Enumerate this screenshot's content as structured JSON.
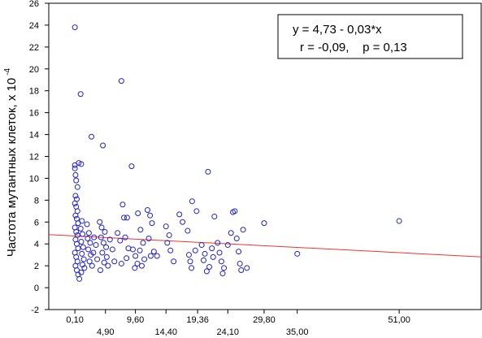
{
  "chart_data": {
    "type": "scatter",
    "title": "",
    "xlabel": "",
    "ylabel": "Частота мутантных клеток, х 10",
    "ylabel_exponent": "-4",
    "xlim": [
      -4,
      64
    ],
    "ylim": [
      -2,
      26
    ],
    "yticks": [
      -2,
      0,
      2,
      4,
      6,
      8,
      10,
      12,
      14,
      16,
      18,
      20,
      22,
      24,
      26
    ],
    "xticks_row1": [
      {
        "value": 0.1,
        "label": "0,10"
      },
      {
        "value": 9.6,
        "label": "9,60"
      },
      {
        "value": 19.36,
        "label": "19,36"
      },
      {
        "value": 29.8,
        "label": "29,80"
      },
      {
        "value": 51.0,
        "label": "51,00"
      }
    ],
    "xticks_row2": [
      {
        "value": 4.9,
        "label": "4,90"
      },
      {
        "value": 14.4,
        "label": "14,40"
      },
      {
        "value": 24.1,
        "label": "24,10"
      },
      {
        "value": 35.0,
        "label": "35,00"
      }
    ],
    "annotation": {
      "line1": "y = 4,73 - 0,03*x",
      "line2": "r = -0,09,    p = 0,13"
    },
    "regression": {
      "intercept": 4.73,
      "slope": -0.03,
      "color": "#ee3333"
    },
    "marker_color": "#2222cc",
    "grid": false,
    "points": [
      [
        0.1,
        23.8
      ],
      [
        1.0,
        17.7
      ],
      [
        2.7,
        13.8
      ],
      [
        4.5,
        13.0
      ],
      [
        7.4,
        18.9
      ],
      [
        9.0,
        11.1
      ],
      [
        21.0,
        10.6
      ],
      [
        0.1,
        11.2
      ],
      [
        0.1,
        10.9
      ],
      [
        0.2,
        10.3
      ],
      [
        0.3,
        9.8
      ],
      [
        0.5,
        9.2
      ],
      [
        0.2,
        8.4
      ],
      [
        0.4,
        8.1
      ],
      [
        0.7,
        11.4
      ],
      [
        1.1,
        11.3
      ],
      [
        0.1,
        7.7
      ],
      [
        0.3,
        7.4
      ],
      [
        0.5,
        7.0
      ],
      [
        0.2,
        6.6
      ],
      [
        0.4,
        6.3
      ],
      [
        0.6,
        5.9
      ],
      [
        0.1,
        5.5
      ],
      [
        0.3,
        5.1
      ],
      [
        0.5,
        4.8
      ],
      [
        0.2,
        4.4
      ],
      [
        0.4,
        4.0
      ],
      [
        0.6,
        3.6
      ],
      [
        0.1,
        3.2
      ],
      [
        0.3,
        2.8
      ],
      [
        0.5,
        2.4
      ],
      [
        0.2,
        2.0
      ],
      [
        0.4,
        1.6
      ],
      [
        0.6,
        1.2
      ],
      [
        0.8,
        0.8
      ],
      [
        1.2,
        6.1
      ],
      [
        1.0,
        5.4
      ],
      [
        1.3,
        4.9
      ],
      [
        1.1,
        4.2
      ],
      [
        1.4,
        3.7
      ],
      [
        1.2,
        3.1
      ],
      [
        1.5,
        2.6
      ],
      [
        1.3,
        2.1
      ],
      [
        1.6,
        1.8
      ],
      [
        1.1,
        1.4
      ],
      [
        2.0,
        5.8
      ],
      [
        2.3,
        5.0
      ],
      [
        2.1,
        4.5
      ],
      [
        2.5,
        4.1
      ],
      [
        2.2,
        3.5
      ],
      [
        2.6,
        3.0
      ],
      [
        2.4,
        2.4
      ],
      [
        2.8,
        2.0
      ],
      [
        3.1,
        4.6
      ],
      [
        3.4,
        3.9
      ],
      [
        3.0,
        3.2
      ],
      [
        3.6,
        2.6
      ],
      [
        4.0,
        6.0
      ],
      [
        4.3,
        5.5
      ],
      [
        4.8,
        5.1
      ],
      [
        4.2,
        4.6
      ],
      [
        4.6,
        4.1
      ],
      [
        5.0,
        3.7
      ],
      [
        4.4,
        3.2
      ],
      [
        5.1,
        2.8
      ],
      [
        4.7,
        2.3
      ],
      [
        5.3,
        2.0
      ],
      [
        4.1,
        1.6
      ],
      [
        5.6,
        4.4
      ],
      [
        6.0,
        3.5
      ],
      [
        6.3,
        2.4
      ],
      [
        6.8,
        5.0
      ],
      [
        7.2,
        4.3
      ],
      [
        7.6,
        7.6
      ],
      [
        7.8,
        6.4
      ],
      [
        8.3,
        6.4
      ],
      [
        8.0,
        4.6
      ],
      [
        8.5,
        3.6
      ],
      [
        8.2,
        2.7
      ],
      [
        7.4,
        2.2
      ],
      [
        9.2,
        3.5
      ],
      [
        9.6,
        2.9
      ],
      [
        9.9,
        2.2
      ],
      [
        9.5,
        1.8
      ],
      [
        10.0,
        6.8
      ],
      [
        10.4,
        5.3
      ],
      [
        10.8,
        4.1
      ],
      [
        10.3,
        3.4
      ],
      [
        11.0,
        2.6
      ],
      [
        10.6,
        2.0
      ],
      [
        11.5,
        7.1
      ],
      [
        11.9,
        6.6
      ],
      [
        12.2,
        5.9
      ],
      [
        11.7,
        4.5
      ],
      [
        12.5,
        3.3
      ],
      [
        12.0,
        2.9
      ],
      [
        13.0,
        2.9
      ],
      [
        14.4,
        5.6
      ],
      [
        14.9,
        4.8
      ],
      [
        14.6,
        4.1
      ],
      [
        15.1,
        3.4
      ],
      [
        15.6,
        2.4
      ],
      [
        16.5,
        6.7
      ],
      [
        17.0,
        6.0
      ],
      [
        17.8,
        5.2
      ],
      [
        18.5,
        7.9
      ],
      [
        19.2,
        7.0
      ],
      [
        19.0,
        3.4
      ],
      [
        18.0,
        3.0
      ],
      [
        18.2,
        2.4
      ],
      [
        18.4,
        1.8
      ],
      [
        20.0,
        3.9
      ],
      [
        20.5,
        3.1
      ],
      [
        20.3,
        2.5
      ],
      [
        20.8,
        1.5
      ],
      [
        21.2,
        1.9
      ],
      [
        21.6,
        3.6
      ],
      [
        21.8,
        2.8
      ],
      [
        22.0,
        6.5
      ],
      [
        22.5,
        4.1
      ],
      [
        22.8,
        3.2
      ],
      [
        23.1,
        2.4
      ],
      [
        23.5,
        1.8
      ],
      [
        23.3,
        1.3
      ],
      [
        24.1,
        3.9
      ],
      [
        24.6,
        5.0
      ],
      [
        24.9,
        6.9
      ],
      [
        25.2,
        7.0
      ],
      [
        25.5,
        4.5
      ],
      [
        25.8,
        3.3
      ],
      [
        26.0,
        2.2
      ],
      [
        26.2,
        1.6
      ],
      [
        26.5,
        5.3
      ],
      [
        27.1,
        1.8
      ],
      [
        29.8,
        5.9
      ],
      [
        35.0,
        3.1
      ],
      [
        51.0,
        6.1
      ]
    ]
  }
}
